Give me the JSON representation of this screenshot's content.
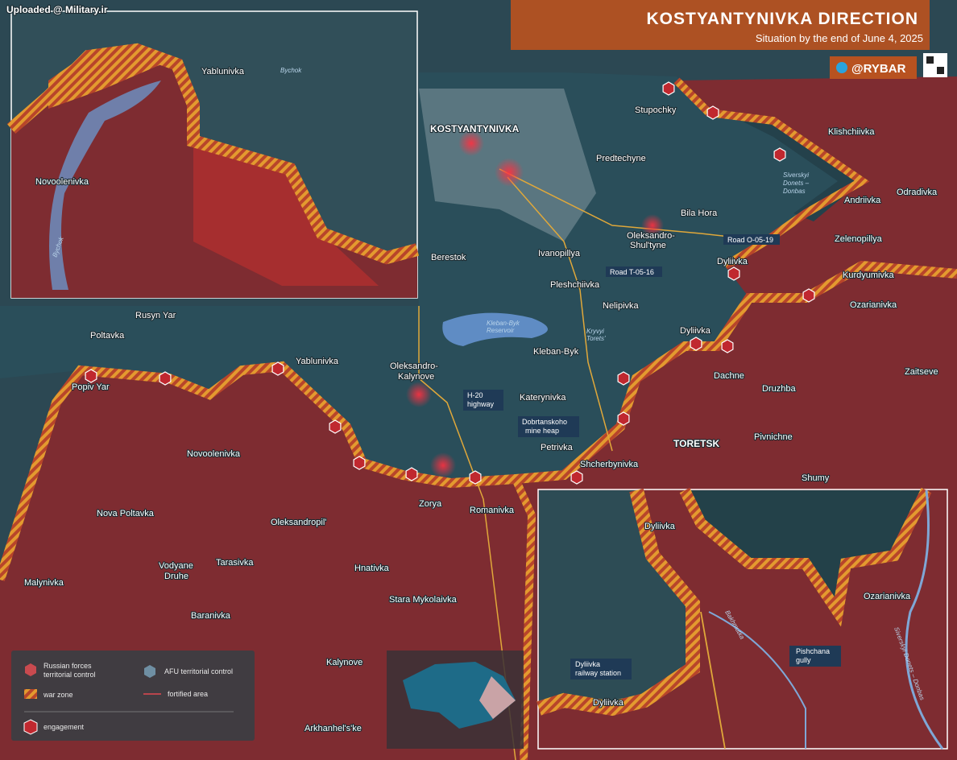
{
  "header": {
    "watermark": "Uploaded @ Military.ir",
    "title": "KOSTYANTYNIVKA DIRECTION",
    "subtitle": "Situation by the end of June 4, 2025",
    "channel": "@RYBAR"
  },
  "map": {
    "settlements": [
      "KOSTYANTYNIVKA",
      "Stupochky",
      "Predtechyne",
      "Klishchiivka",
      "Odradivka",
      "Andriivka",
      "Bila Hora",
      "Oleksandro-",
      "Shul'tyne",
      "Zelenopillya",
      "Berestok",
      "Ivanopillya",
      "Dyliivka",
      "Kurdyumivka",
      "Pleshchiivka",
      "Nelipivka",
      "Ozarianivka",
      "Rusyn Yar",
      "Poltavka",
      "Dyliivka",
      "Kleban-Byk",
      "Zaitseve",
      "Yablunivka",
      "Oleksandro-",
      "Kalynove",
      "Dachne",
      "Popiv Yar",
      "Katerynivka",
      "Druzhba",
      "TORETSK",
      "Pivnichne",
      "Novoolenivka",
      "Petrivka",
      "Shcherbynivka",
      "Shumy",
      "Zorya",
      "Romanivka",
      "Nova Poltavka",
      "Oleksandropil'",
      "Vodyane",
      "Druhe",
      "Tarasivka",
      "Malynivka",
      "Hnativka",
      "Stara Mykolaivka",
      "Baranivka",
      "Kalynove",
      "Arkhanhel's'ke"
    ],
    "features": [
      "Siverskyi",
      "Donets –",
      "Donbas",
      "Road O-05-19",
      "Road T-05-16",
      "Kleban-Byk",
      "Reservoir",
      "Kryvyi",
      "Torets'",
      "H-20",
      "highway",
      "Dobrtanskoho",
      "mine heap"
    ]
  },
  "inset_north": {
    "labels": [
      "Yablunivka",
      "Bychok",
      "Novoolenivka",
      "Bychok"
    ]
  },
  "inset_south": {
    "labels": [
      "Dyliivka",
      "Ozarianivka",
      "Pishchana",
      "gully",
      "Dyliivka",
      "railway station",
      "Dyliivka",
      "Bakhmutka",
      "Siverskyi Donets – Donbas"
    ]
  },
  "legend": {
    "items": [
      "Russian forces",
      "territorial control",
      "AFU territorial control",
      "war zone",
      "fortified area",
      "engagement"
    ]
  }
}
